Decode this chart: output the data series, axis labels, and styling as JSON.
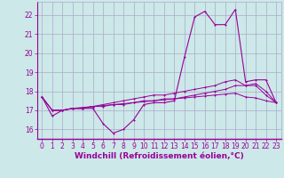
{
  "background_color": "#cce8e8",
  "grid_color": "#aaaacc",
  "line_color": "#990099",
  "x_values": [
    0,
    1,
    2,
    3,
    4,
    5,
    6,
    7,
    8,
    9,
    10,
    11,
    12,
    13,
    14,
    15,
    16,
    17,
    18,
    19,
    20,
    21,
    22,
    23
  ],
  "main_line": [
    17.7,
    16.7,
    17.0,
    17.1,
    17.1,
    17.1,
    16.3,
    15.8,
    16.0,
    16.5,
    17.3,
    17.4,
    17.4,
    17.5,
    19.8,
    21.9,
    22.2,
    21.5,
    21.5,
    22.3,
    18.5,
    18.6,
    18.6,
    17.4
  ],
  "line2": [
    17.7,
    17.0,
    17.0,
    17.1,
    17.1,
    17.2,
    17.2,
    17.3,
    17.3,
    17.4,
    17.5,
    17.5,
    17.6,
    17.6,
    17.7,
    17.8,
    17.9,
    18.0,
    18.1,
    18.3,
    18.3,
    18.3,
    17.8,
    17.4
  ],
  "line3": [
    17.7,
    17.0,
    17.0,
    17.1,
    17.1,
    17.2,
    17.3,
    17.4,
    17.5,
    17.6,
    17.7,
    17.8,
    17.8,
    17.9,
    18.0,
    18.1,
    18.2,
    18.3,
    18.5,
    18.6,
    18.3,
    18.4,
    18.0,
    17.4
  ],
  "line4": [
    17.7,
    17.0,
    17.0,
    17.1,
    17.15,
    17.2,
    17.25,
    17.3,
    17.35,
    17.4,
    17.45,
    17.5,
    17.55,
    17.6,
    17.65,
    17.7,
    17.75,
    17.8,
    17.85,
    17.9,
    17.7,
    17.65,
    17.5,
    17.4
  ],
  "ylim": [
    15.5,
    22.7
  ],
  "xlim": [
    -0.5,
    23.5
  ],
  "yticks": [
    16,
    17,
    18,
    19,
    20,
    21,
    22
  ],
  "xticks": [
    0,
    1,
    2,
    3,
    4,
    5,
    6,
    7,
    8,
    9,
    10,
    11,
    12,
    13,
    14,
    15,
    16,
    17,
    18,
    19,
    20,
    21,
    22,
    23
  ],
  "xlabel": "Windchill (Refroidissement éolien,°C)",
  "line_color2": "#aa00aa",
  "tick_color": "#990099",
  "label_fontsize": 6.5,
  "tick_fontsize": 5.5
}
